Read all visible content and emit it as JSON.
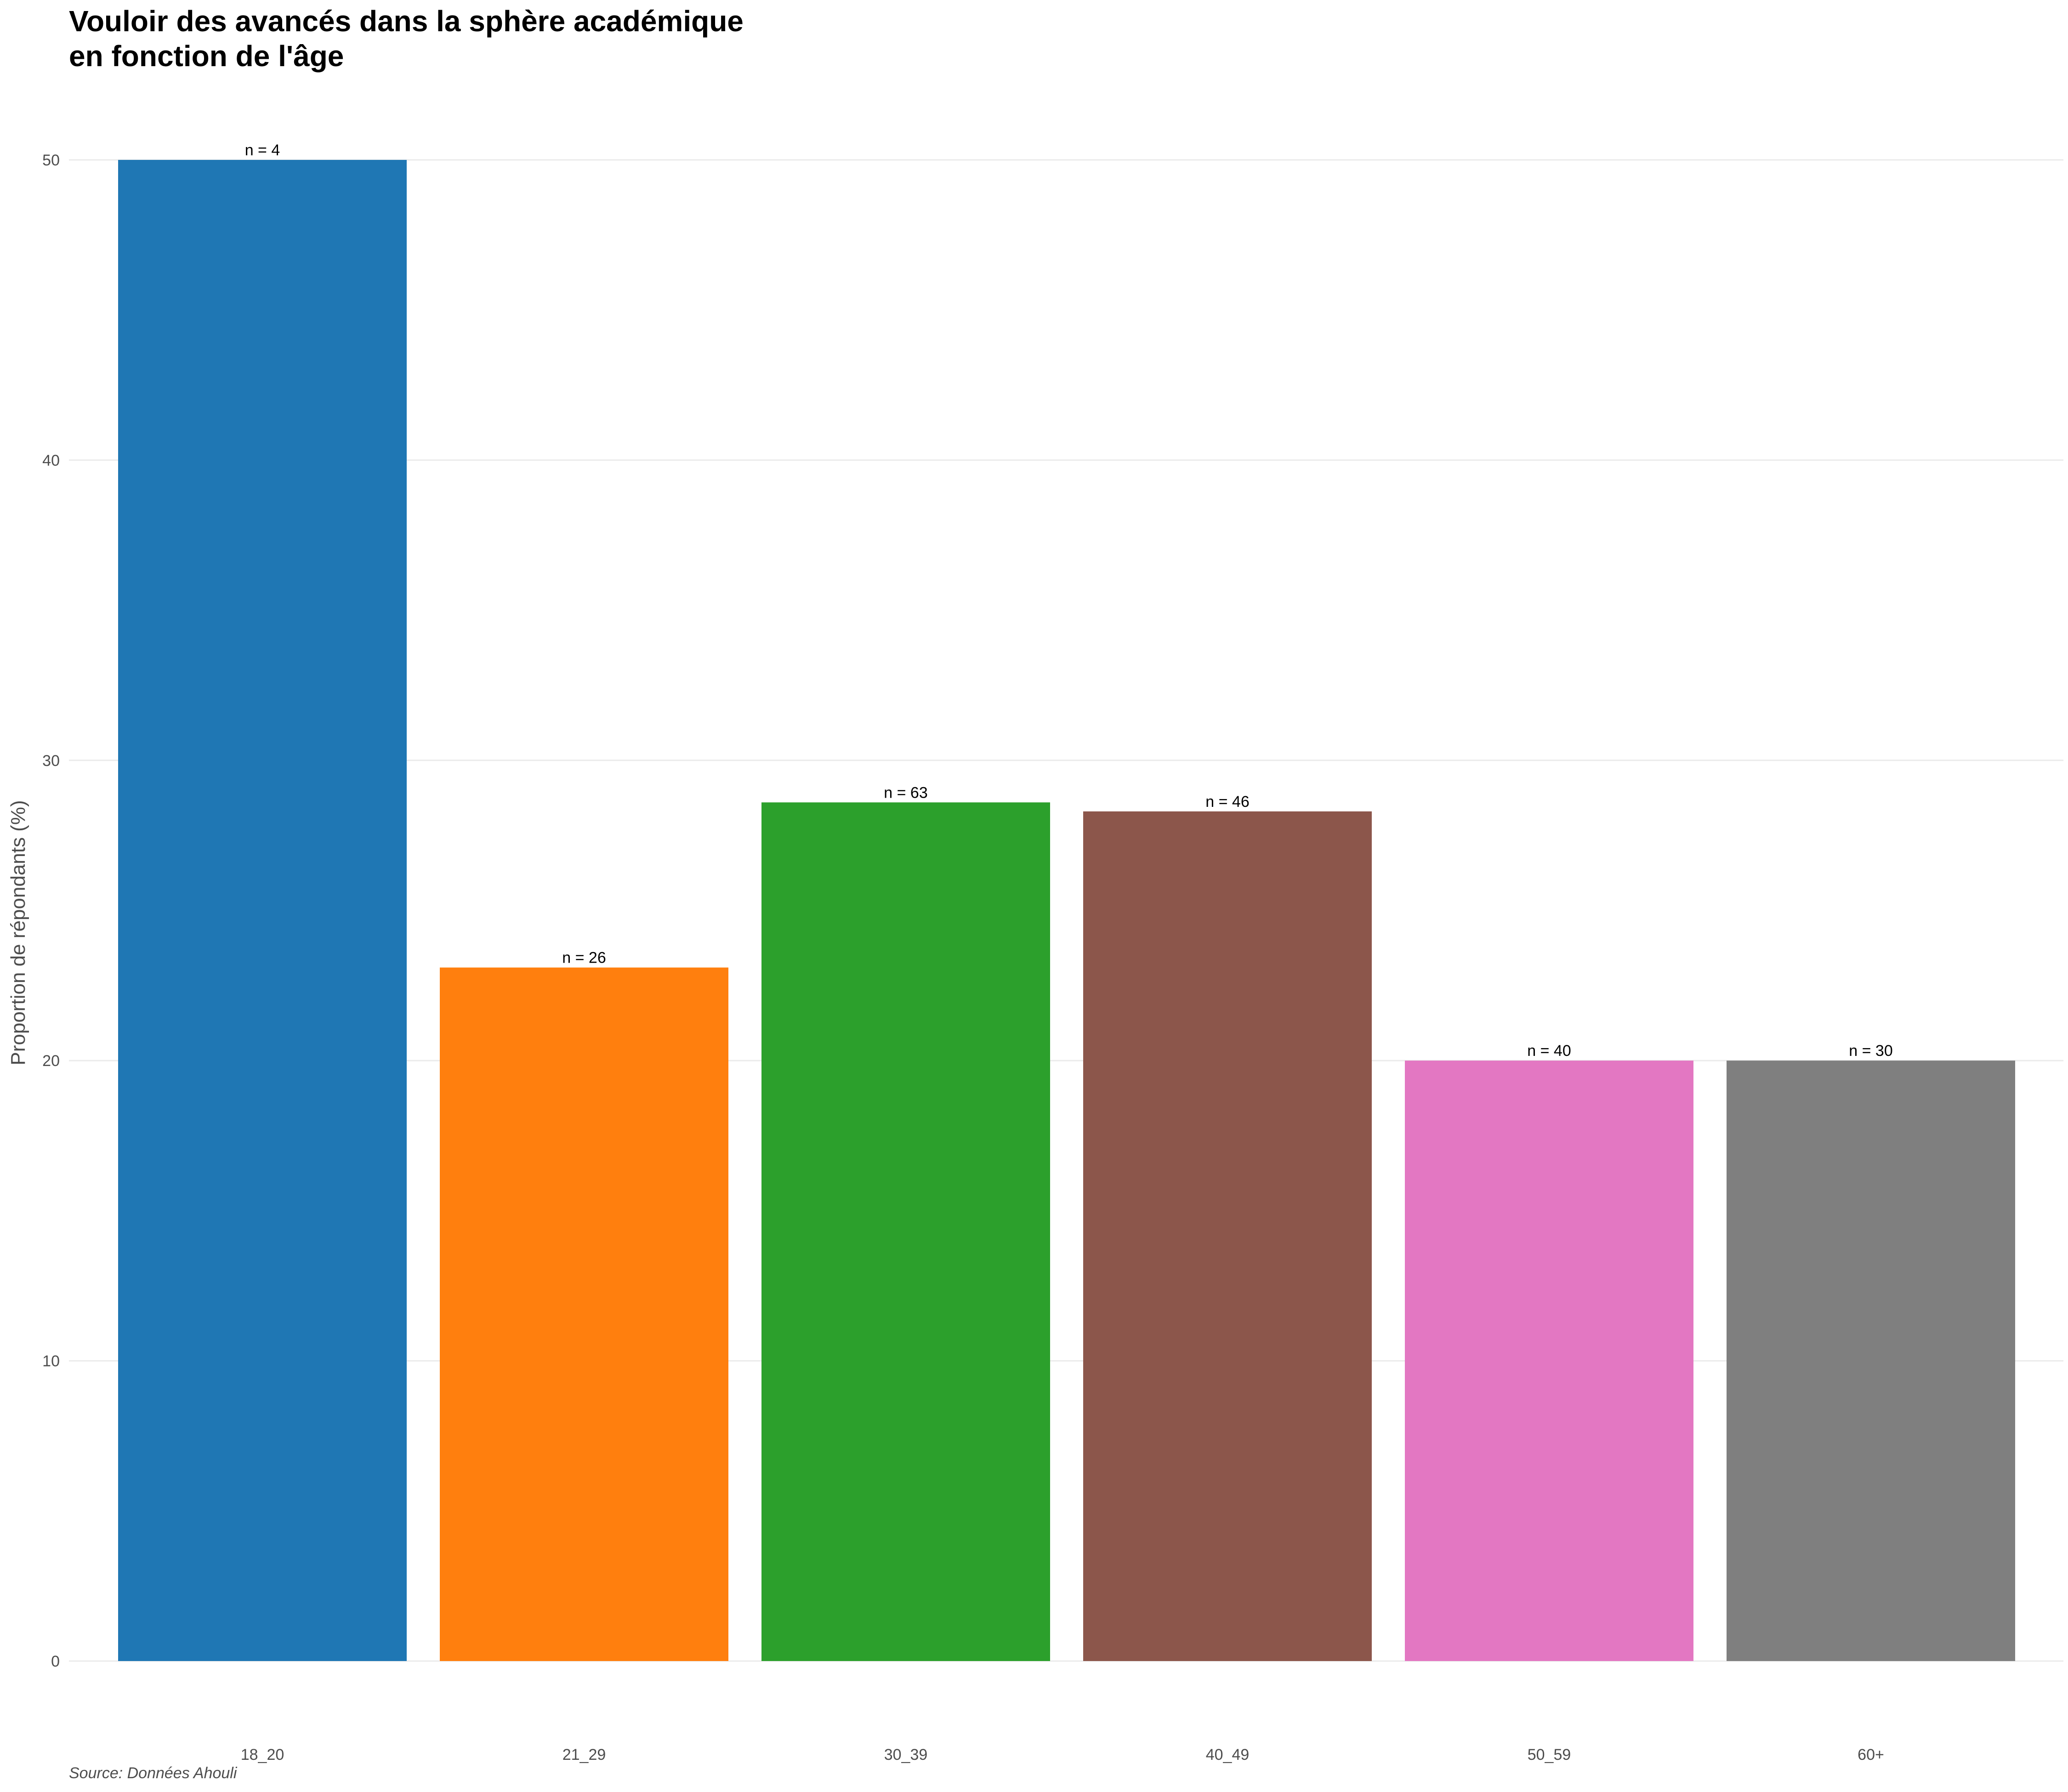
{
  "chart_data": {
    "type": "bar",
    "title_lines": [
      "Vouloir des avancés dans la sphère académique",
      "en fonction de l'âge"
    ],
    "xlabel": "",
    "ylabel": "Proportion de répondants (%)",
    "caption": "Source: Données Ahouli",
    "categories": [
      "18_20",
      "21_29",
      "30_39",
      "40_49",
      "50_59",
      "60+"
    ],
    "values": [
      50,
      23.1,
      28.6,
      28.3,
      20,
      20
    ],
    "bar_labels": [
      "n = 4",
      "n = 26",
      "n = 63",
      "n = 46",
      "n = 40",
      "n = 30"
    ],
    "colors": [
      "#1f77b4",
      "#ff7f0e",
      "#2ca02c",
      "#8c564b",
      "#e377c2",
      "#7f7f7f"
    ],
    "ylim": [
      0,
      50
    ],
    "yticks": [
      0,
      10,
      20,
      30,
      40,
      50
    ],
    "grid": true,
    "legend": "none"
  }
}
